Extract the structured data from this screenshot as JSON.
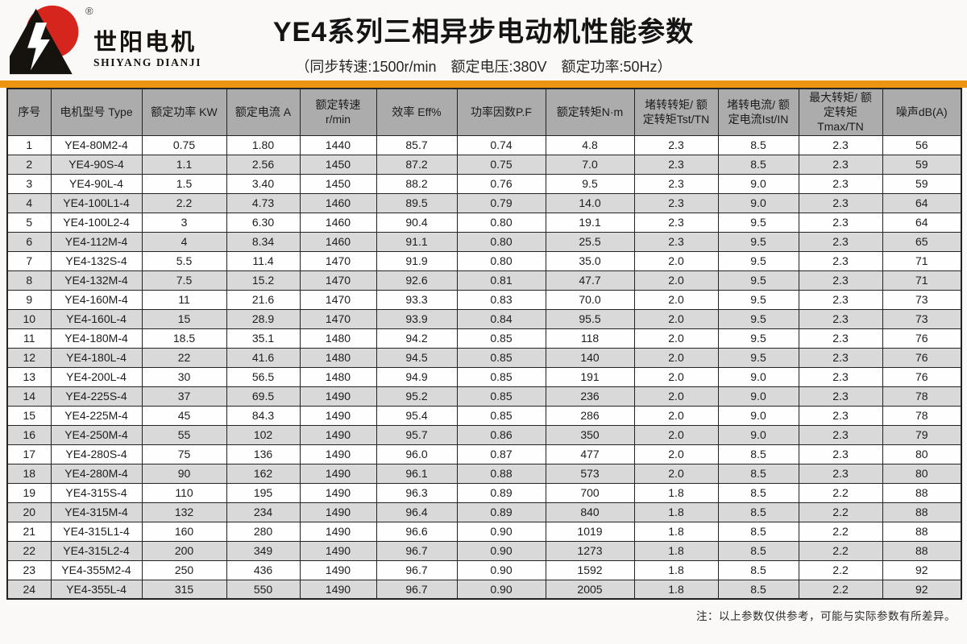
{
  "colors": {
    "accent": "#ED9413",
    "header_bg": "#ACACAC",
    "row_alt": "#D9D9D9",
    "border": "#232323",
    "logo_red": "#D6251D",
    "page_bg": "#faf9f7"
  },
  "brand": {
    "name_cn": "世阳电机",
    "name_en": "SHIYANG DIANJI",
    "registered": "®"
  },
  "header": {
    "title": "YE4系列三相异步电动机性能参数",
    "subtitle": "（同步转速:1500r/min　额定电压:380V　额定功率:50Hz）"
  },
  "table": {
    "columns": [
      "序号",
      "电机型号 Type",
      "额定功率 KW",
      "额定电流 A",
      "额定转速 r/min",
      "效率 Eff%",
      "功率因数P.F",
      "额定转矩N·m",
      "堵转转矩/ 额\n定转矩Tst/TN",
      "堵转电流/ 额\n定电流Ist/IN",
      "最大转矩/ 额\n定转矩Tmax/TN",
      "噪声dB(A)"
    ],
    "rows": [
      [
        "1",
        "YE4-80M2-4",
        "0.75",
        "1.80",
        "1440",
        "85.7",
        "0.74",
        "4.8",
        "2.3",
        "8.5",
        "2.3",
        "56"
      ],
      [
        "2",
        "YE4-90S-4",
        "1.1",
        "2.56",
        "1450",
        "87.2",
        "0.75",
        "7.0",
        "2.3",
        "8.5",
        "2.3",
        "59"
      ],
      [
        "3",
        "YE4-90L-4",
        "1.5",
        "3.40",
        "1450",
        "88.2",
        "0.76",
        "9.5",
        "2.3",
        "9.0",
        "2.3",
        "59"
      ],
      [
        "4",
        "YE4-100L1-4",
        "2.2",
        "4.73",
        "1460",
        "89.5",
        "0.79",
        "14.0",
        "2.3",
        "9.0",
        "2.3",
        "64"
      ],
      [
        "5",
        "YE4-100L2-4",
        "3",
        "6.30",
        "1460",
        "90.4",
        "0.80",
        "19.1",
        "2.3",
        "9.5",
        "2.3",
        "64"
      ],
      [
        "6",
        "YE4-112M-4",
        "4",
        "8.34",
        "1460",
        "91.1",
        "0.80",
        "25.5",
        "2.3",
        "9.5",
        "2.3",
        "65"
      ],
      [
        "7",
        "YE4-132S-4",
        "5.5",
        "11.4",
        "1470",
        "91.9",
        "0.80",
        "35.0",
        "2.0",
        "9.5",
        "2.3",
        "71"
      ],
      [
        "8",
        "YE4-132M-4",
        "7.5",
        "15.2",
        "1470",
        "92.6",
        "0.81",
        "47.7",
        "2.0",
        "9.5",
        "2.3",
        "71"
      ],
      [
        "9",
        "YE4-160M-4",
        "11",
        "21.6",
        "1470",
        "93.3",
        "0.83",
        "70.0",
        "2.0",
        "9.5",
        "2.3",
        "73"
      ],
      [
        "10",
        "YE4-160L-4",
        "15",
        "28.9",
        "1470",
        "93.9",
        "0.84",
        "95.5",
        "2.0",
        "9.5",
        "2.3",
        "73"
      ],
      [
        "11",
        "YE4-180M-4",
        "18.5",
        "35.1",
        "1480",
        "94.2",
        "0.85",
        "118",
        "2.0",
        "9.5",
        "2.3",
        "76"
      ],
      [
        "12",
        "YE4-180L-4",
        "22",
        "41.6",
        "1480",
        "94.5",
        "0.85",
        "140",
        "2.0",
        "9.5",
        "2.3",
        "76"
      ],
      [
        "13",
        "YE4-200L-4",
        "30",
        "56.5",
        "1480",
        "94.9",
        "0.85",
        "191",
        "2.0",
        "9.0",
        "2.3",
        "76"
      ],
      [
        "14",
        "YE4-225S-4",
        "37",
        "69.5",
        "1490",
        "95.2",
        "0.85",
        "236",
        "2.0",
        "9.0",
        "2.3",
        "78"
      ],
      [
        "15",
        "YE4-225M-4",
        "45",
        "84.3",
        "1490",
        "95.4",
        "0.85",
        "286",
        "2.0",
        "9.0",
        "2.3",
        "78"
      ],
      [
        "16",
        "YE4-250M-4",
        "55",
        "102",
        "1490",
        "95.7",
        "0.86",
        "350",
        "2.0",
        "9.0",
        "2.3",
        "79"
      ],
      [
        "17",
        "YE4-280S-4",
        "75",
        "136",
        "1490",
        "96.0",
        "0.87",
        "477",
        "2.0",
        "8.5",
        "2.3",
        "80"
      ],
      [
        "18",
        "YE4-280M-4",
        "90",
        "162",
        "1490",
        "96.1",
        "0.88",
        "573",
        "2.0",
        "8.5",
        "2.3",
        "80"
      ],
      [
        "19",
        "YE4-315S-4",
        "110",
        "195",
        "1490",
        "96.3",
        "0.89",
        "700",
        "1.8",
        "8.5",
        "2.2",
        "88"
      ],
      [
        "20",
        "YE4-315M-4",
        "132",
        "234",
        "1490",
        "96.4",
        "0.89",
        "840",
        "1.8",
        "8.5",
        "2.2",
        "88"
      ],
      [
        "21",
        "YE4-315L1-4",
        "160",
        "280",
        "1490",
        "96.6",
        "0.90",
        "1019",
        "1.8",
        "8.5",
        "2.2",
        "88"
      ],
      [
        "22",
        "YE4-315L2-4",
        "200",
        "349",
        "1490",
        "96.7",
        "0.90",
        "1273",
        "1.8",
        "8.5",
        "2.2",
        "88"
      ],
      [
        "23",
        "YE4-355M2-4",
        "250",
        "436",
        "1490",
        "96.7",
        "0.90",
        "1592",
        "1.8",
        "8.5",
        "2.2",
        "92"
      ],
      [
        "24",
        "YE4-355L-4",
        "315",
        "550",
        "1490",
        "96.7",
        "0.90",
        "2005",
        "1.8",
        "8.5",
        "2.2",
        "92"
      ]
    ]
  },
  "footnote": "注：以上参数仅供参考，可能与实际参数有所差异。"
}
